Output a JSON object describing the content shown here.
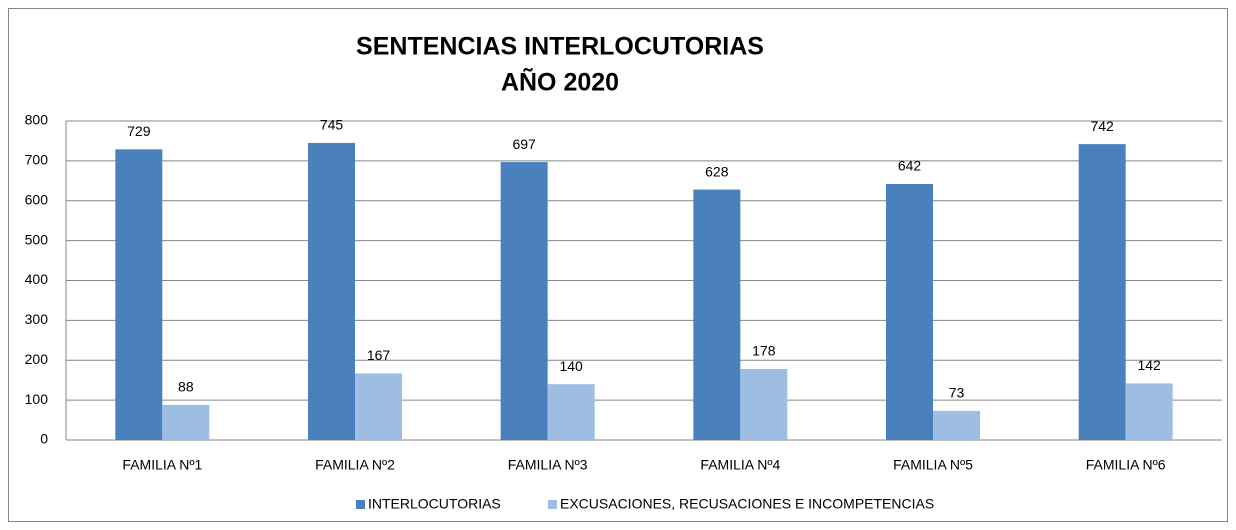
{
  "chart_data": {
    "type": "bar",
    "title": [
      "SENTENCIAS INTERLOCUTORIAS",
      "AÑO 2020"
    ],
    "categories": [
      "FAMILIA Nº1",
      "FAMILIA Nº2",
      "FAMILIA Nº3",
      "FAMILIA Nº4",
      "FAMILIA Nº5",
      "FAMILIA Nº6"
    ],
    "series": [
      {
        "name": "INTERLOCUTORIAS",
        "color": "#4a81bd",
        "values": [
          729,
          745,
          697,
          628,
          642,
          742
        ]
      },
      {
        "name": "EXCUSACIONES, RECUSACIONES E INCOMPETENCIAS",
        "color": "#9dbde3",
        "values": [
          88,
          167,
          140,
          178,
          73,
          142
        ]
      }
    ],
    "ylim": [
      0,
      800
    ],
    "yticks": [
      0,
      100,
      200,
      300,
      400,
      500,
      600,
      700,
      800
    ],
    "grid": true,
    "legend": "bottom"
  }
}
